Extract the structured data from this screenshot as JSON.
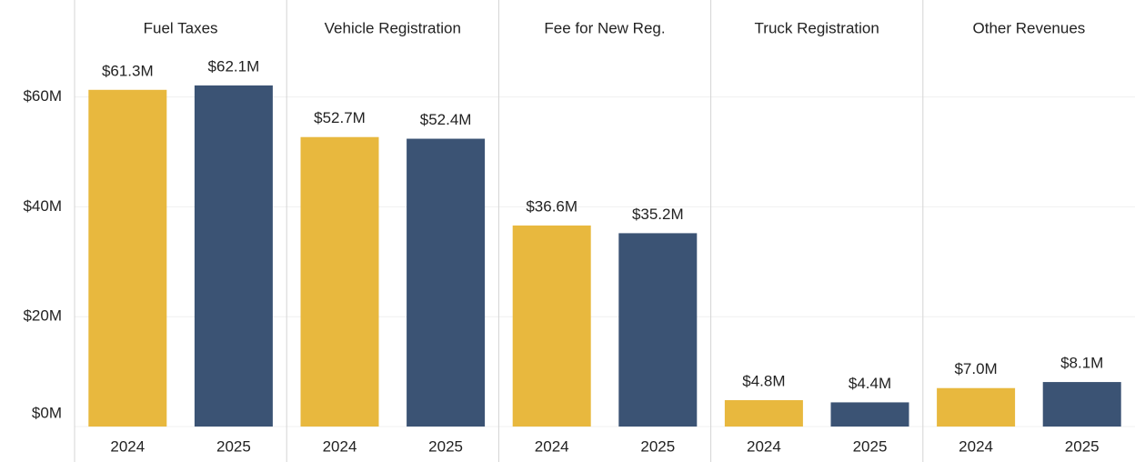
{
  "chart_data": {
    "type": "bar",
    "categories": [
      "Fuel Taxes",
      "Vehicle Registration",
      "Fee for New Reg.",
      "Truck Registration",
      "Other Revenues"
    ],
    "series": [
      {
        "name": "2024",
        "color": "#e8b83e",
        "values": [
          61.3,
          52.7,
          36.6,
          4.8,
          7.0
        ],
        "value_labels": [
          "$61.3M",
          "$52.7M",
          "$36.6M",
          "$4.8M",
          "$7.0M"
        ]
      },
      {
        "name": "2025",
        "color": "#3b5374",
        "values": [
          62.1,
          52.4,
          35.2,
          4.4,
          8.1
        ],
        "value_labels": [
          "$62.1M",
          "$52.4M",
          "$35.2M",
          "$4.4M",
          "$8.1M"
        ]
      }
    ],
    "ylim": [
      0,
      76
    ],
    "yticks": [
      {
        "value": 0,
        "label": "$0M"
      },
      {
        "value": 20,
        "label": "$20M"
      },
      {
        "value": 40,
        "label": "$40M"
      },
      {
        "value": 60,
        "label": "$60M"
      }
    ],
    "grid": true
  }
}
